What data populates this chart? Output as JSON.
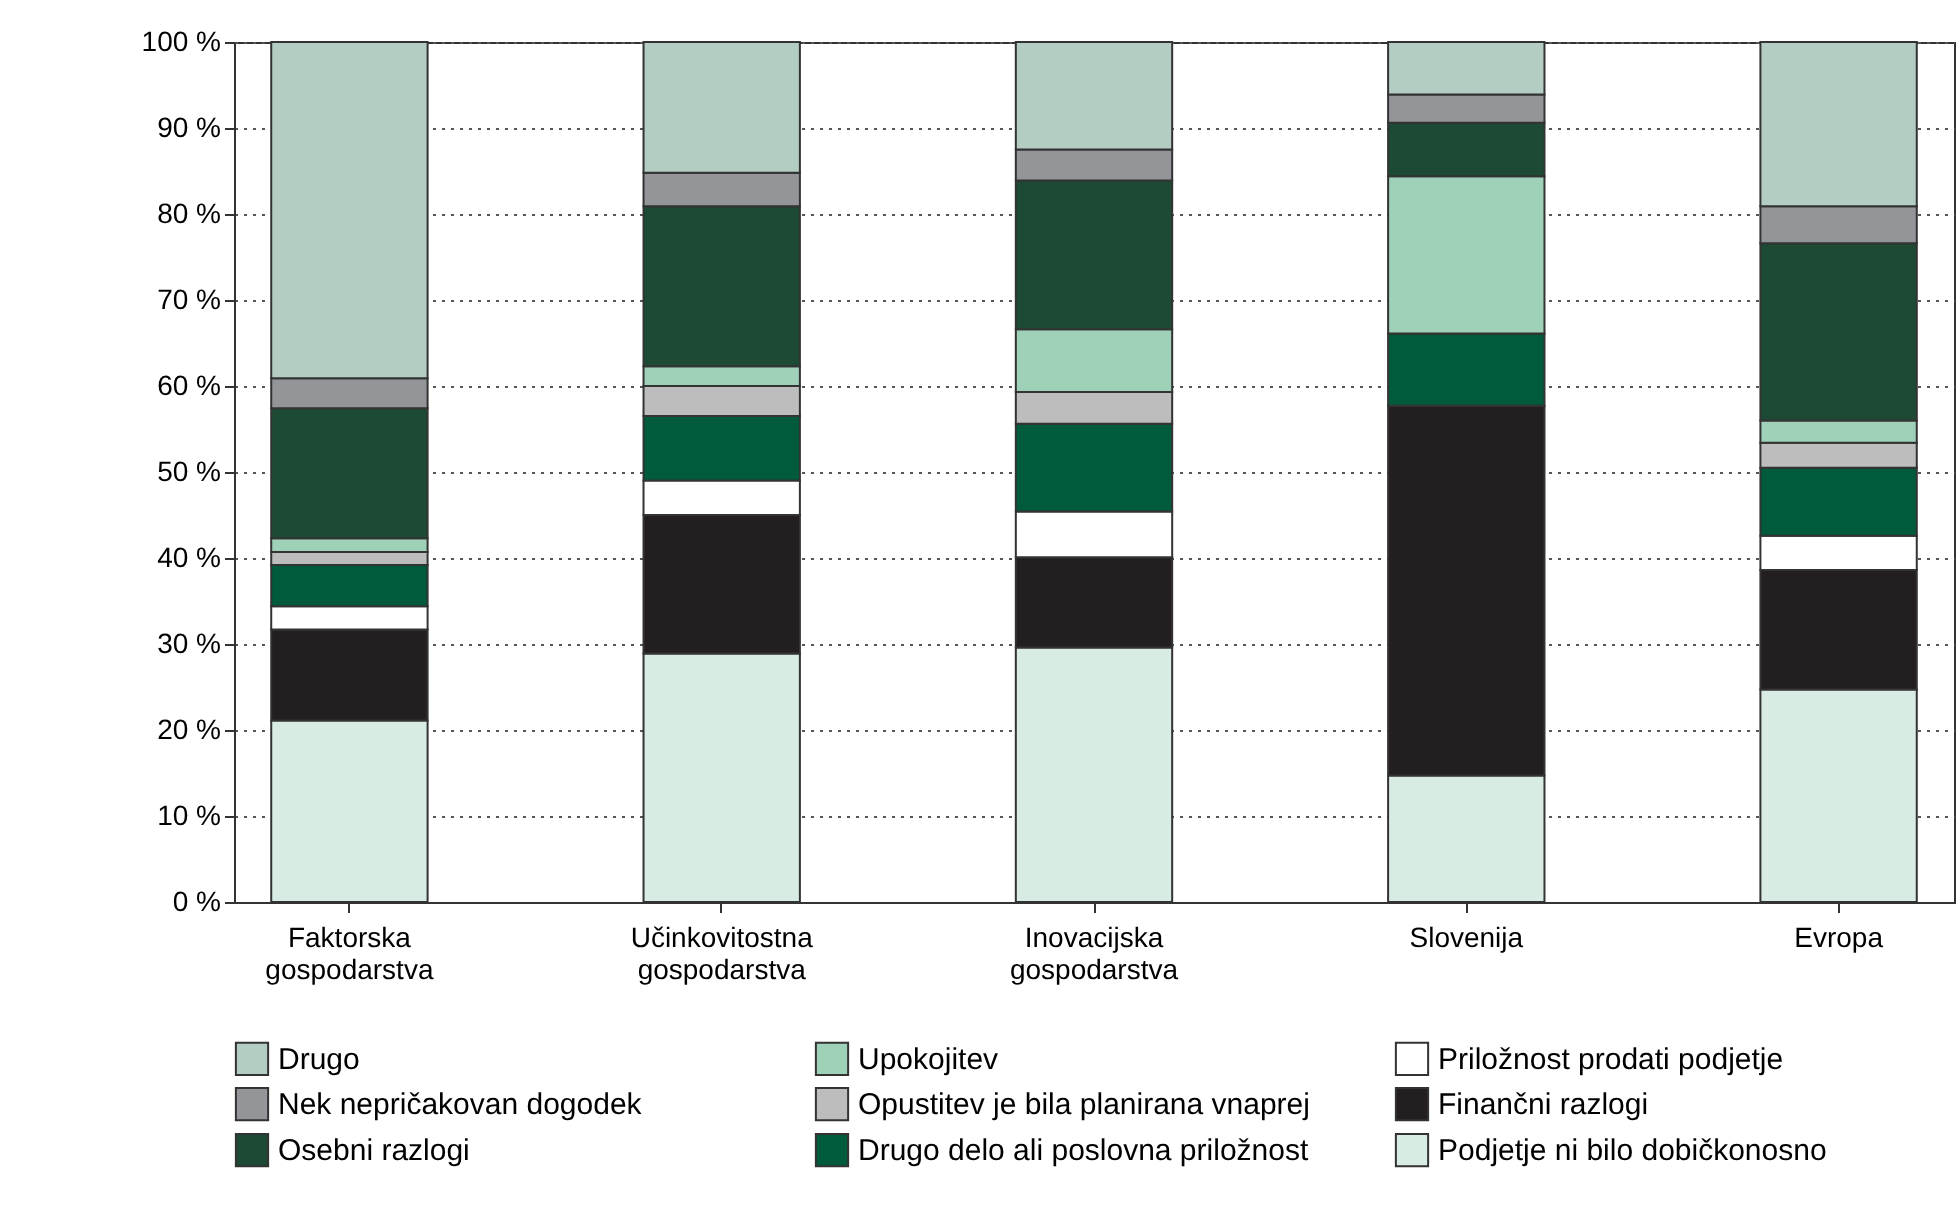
{
  "chart_data": {
    "type": "bar",
    "stacked": true,
    "categories": [
      "Faktorska gospodarstva",
      "Učinkovitostna gospodarstva",
      "Inovacijska gospodarstva",
      "Slovenija",
      "Evropa"
    ],
    "series": [
      {
        "name": "Podjetje ni bilo dobičkonosno",
        "color": "#d9ece3",
        "values": [
          21.1,
          28.9,
          29.6,
          14.7,
          24.7
        ]
      },
      {
        "name": "Finančni razlogi",
        "color": "#231f20",
        "values": [
          10.6,
          16.1,
          10.5,
          43.0,
          13.9
        ]
      },
      {
        "name": "Priložnost prodati podjetje",
        "color": "#ffffff",
        "values": [
          2.7,
          4.0,
          5.3,
          0,
          4.0
        ]
      },
      {
        "name": "Drugo delo ali poslovna priložnost",
        "color": "#005a3c",
        "values": [
          4.8,
          7.5,
          10.2,
          8.4,
          7.9
        ]
      },
      {
        "name": "Opustitev je bila planirana vnaprej",
        "color": "#bdbdbd",
        "values": [
          1.5,
          3.5,
          3.7,
          0,
          2.9
        ]
      },
      {
        "name": "Upokojitev",
        "color": "#9fd0b8",
        "values": [
          1.6,
          2.3,
          7.3,
          18.3,
          2.6
        ]
      },
      {
        "name": "Osebni razlogi",
        "color": "#1d4a35",
        "values": [
          15.1,
          18.6,
          17.3,
          6.2,
          20.6
        ]
      },
      {
        "name": "Nek nepričakovan dogodek",
        "color": "#939598",
        "values": [
          3.5,
          3.9,
          3.6,
          3.3,
          4.3
        ]
      },
      {
        "name": "Drugo",
        "color": "#b3cdc3",
        "values": [
          39.1,
          15.2,
          12.5,
          6.1,
          19.1
        ]
      }
    ],
    "ylim": [
      0,
      100
    ],
    "yticks": [
      {
        "value": 0,
        "label": "0 %"
      },
      {
        "value": 10,
        "label": "10 %"
      },
      {
        "value": 20,
        "label": "20 %"
      },
      {
        "value": 30,
        "label": "30 %"
      },
      {
        "value": 40,
        "label": "40 %"
      },
      {
        "value": 50,
        "label": "50 %"
      },
      {
        "value": 60,
        "label": "60 %"
      },
      {
        "value": 70,
        "label": "70 %"
      },
      {
        "value": 80,
        "label": "80 %"
      },
      {
        "value": 90,
        "label": "90 %"
      },
      {
        "value": 100,
        "label": "100 %"
      }
    ],
    "grid": "y",
    "legend": "bottom"
  }
}
